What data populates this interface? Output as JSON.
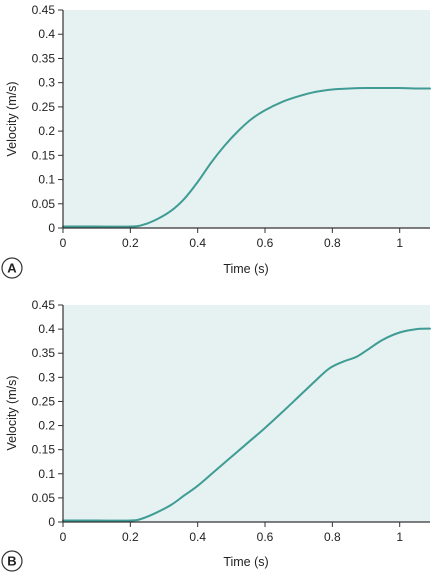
{
  "colors": {
    "plot_background": "#e6f1f1",
    "curve": "#3f9c94",
    "axis": "#333333",
    "badge_fill": "#ffffff",
    "badge_stroke": "#333333"
  },
  "chart_data": [
    {
      "type": "line",
      "panel_label": "A",
      "xlabel": "Time (s)",
      "ylabel": "Velocity (m/s)",
      "xlim": [
        0,
        1.09
      ],
      "ylim": [
        0,
        0.45
      ],
      "xticks": [
        0,
        0.2,
        0.4,
        0.6,
        0.8,
        1
      ],
      "xtick_labels": [
        "0",
        "0.2",
        "0.4",
        "0.6",
        "0.8",
        "1"
      ],
      "yticks": [
        0,
        0.05,
        0.1,
        0.15,
        0.2,
        0.25,
        0.3,
        0.35,
        0.4,
        0.45
      ],
      "ytick_labels": [
        "0",
        "0.05",
        "0.1",
        "0.15",
        "0.2",
        "0.25",
        "0.3",
        "0.35",
        "0.4",
        "0.45"
      ],
      "grid": false,
      "series": [
        {
          "x": [
            0,
            0.1,
            0.2,
            0.23,
            0.27,
            0.32,
            0.36,
            0.4,
            0.44,
            0.48,
            0.52,
            0.56,
            0.6,
            0.65,
            0.7,
            0.75,
            0.8,
            0.85,
            0.9,
            0.95,
            1.0,
            1.05,
            1.09
          ],
          "y": [
            0.003,
            0.003,
            0.003,
            0.005,
            0.015,
            0.035,
            0.06,
            0.095,
            0.135,
            0.17,
            0.2,
            0.225,
            0.243,
            0.26,
            0.272,
            0.281,
            0.286,
            0.288,
            0.289,
            0.289,
            0.289,
            0.288,
            0.288
          ]
        }
      ]
    },
    {
      "type": "line",
      "panel_label": "B",
      "xlabel": "Time (s)",
      "ylabel": "Velocity (m/s)",
      "xlim": [
        0,
        1.09
      ],
      "ylim": [
        0,
        0.45
      ],
      "xticks": [
        0,
        0.2,
        0.4,
        0.6,
        0.8,
        1
      ],
      "xtick_labels": [
        "0",
        "0.2",
        "0.4",
        "0.6",
        "0.8",
        "1"
      ],
      "yticks": [
        0,
        0.05,
        0.1,
        0.15,
        0.2,
        0.25,
        0.3,
        0.35,
        0.4,
        0.45
      ],
      "ytick_labels": [
        "0",
        "0.05",
        "0.1",
        "0.15",
        "0.2",
        "0.25",
        "0.3",
        "0.35",
        "0.4",
        "0.45"
      ],
      "grid": false,
      "series": [
        {
          "x": [
            0,
            0.1,
            0.2,
            0.23,
            0.27,
            0.32,
            0.36,
            0.4,
            0.45,
            0.5,
            0.55,
            0.6,
            0.65,
            0.7,
            0.75,
            0.79,
            0.83,
            0.87,
            0.9,
            0.95,
            1.0,
            1.05,
            1.09
          ],
          "y": [
            0.003,
            0.003,
            0.003,
            0.006,
            0.017,
            0.035,
            0.055,
            0.075,
            0.105,
            0.135,
            0.165,
            0.195,
            0.227,
            0.26,
            0.293,
            0.318,
            0.332,
            0.342,
            0.355,
            0.378,
            0.393,
            0.4,
            0.401
          ]
        }
      ]
    }
  ]
}
